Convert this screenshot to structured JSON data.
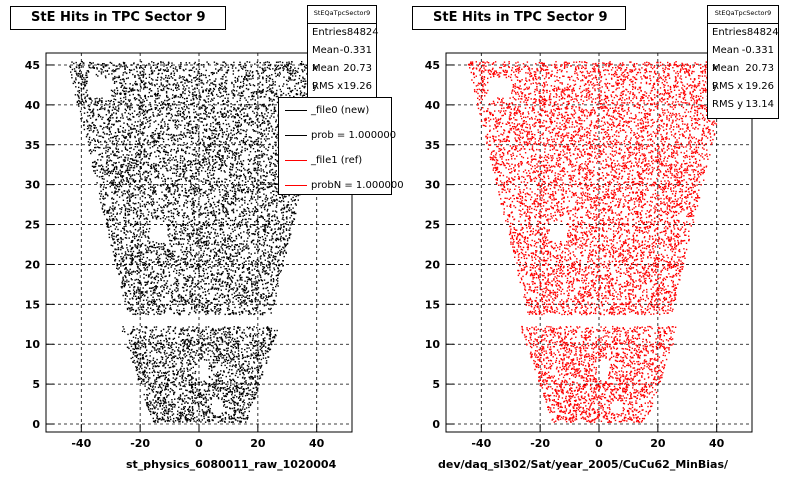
{
  "footer_text": "",
  "chart_data": [
    {
      "type": "scatter",
      "title": "StE Hits in TPC Sector 9",
      "xlabel": "st_physics_6080011_raw_1020004",
      "ylabel": "",
      "xlim": [
        -52,
        52
      ],
      "ylim": [
        -1,
        46.5
      ],
      "x_ticks": [
        -40,
        -20,
        0,
        20,
        40
      ],
      "y_ticks": [
        0,
        5,
        10,
        15,
        20,
        25,
        30,
        35,
        40,
        45
      ],
      "grid": true,
      "marker_color": "#000000",
      "series": [
        {
          "name": "",
          "values": []
        }
      ],
      "stats": {
        "name": "StEQaTpcSector9",
        "rows": [
          {
            "label": "Entries",
            "value": "84824"
          },
          {
            "label": "Mean x",
            "value": "-0.331"
          },
          {
            "label": "Mean y",
            "value": "20.73"
          },
          {
            "label": "RMS x",
            "value": "19.26"
          }
        ]
      },
      "legend": {
        "placement": "top-right",
        "entries": [
          {
            "label": "_file0 (new)",
            "color": "#000000"
          },
          {
            "label": "prob = 1.000000",
            "color": "#000000"
          },
          {
            "label": "_file1 (ref)",
            "color": "#ff0000"
          },
          {
            "label": "probN = 1.000000",
            "color": "#ff0000"
          }
        ]
      }
    },
    {
      "type": "scatter",
      "title": "StE Hits in TPC Sector 9",
      "xlabel": "dev/daq_sl302/Sat/year_2005/CuCu62_MinBias/",
      "ylabel": "",
      "xlim": [
        -52,
        52
      ],
      "ylim": [
        -1,
        46.5
      ],
      "x_ticks": [
        -40,
        -20,
        0,
        20,
        40
      ],
      "y_ticks": [
        0,
        5,
        10,
        15,
        20,
        25,
        30,
        35,
        40,
        45
      ],
      "grid": true,
      "marker_color": "#ff0000",
      "series": [
        {
          "name": "",
          "values": []
        }
      ],
      "stats": {
        "name": "StEQaTpcSector9",
        "rows": [
          {
            "label": "Entries",
            "value": "84824"
          },
          {
            "label": "Mean x",
            "value": "-0.331"
          },
          {
            "label": "Mean y",
            "value": "20.73"
          },
          {
            "label": "RMS x",
            "value": "19.26"
          },
          {
            "label": "RMS y",
            "value": "13.14"
          }
        ]
      }
    }
  ]
}
